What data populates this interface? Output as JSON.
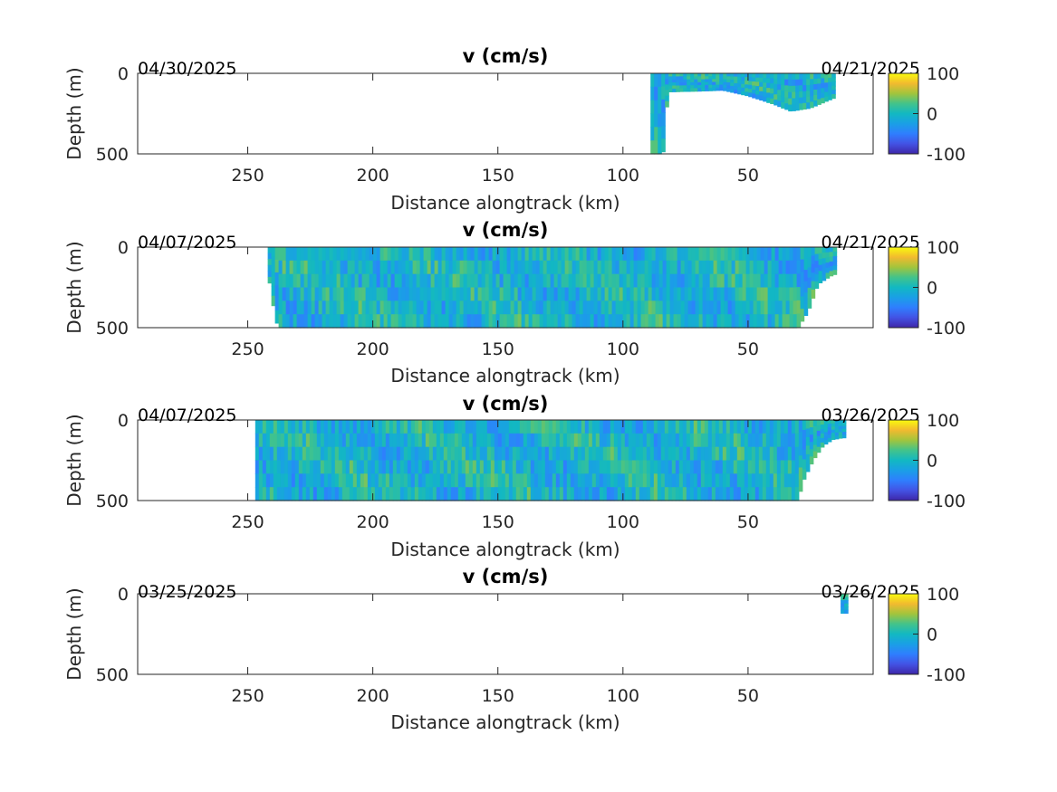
{
  "chart_data": [
    {
      "type": "heatmap",
      "title": "v (cm/s)",
      "xlabel": "Distance alongtrack (km)",
      "ylabel": "Depth (m)",
      "xlim": [
        294,
        0
      ],
      "ylim": [
        0,
        500
      ],
      "x_reversed": true,
      "xticks": [
        "250",
        "200",
        "150",
        "100",
        "50"
      ],
      "yticks": [
        "0",
        "500"
      ],
      "date_left": "04/30/2025",
      "date_right": "04/21/2025",
      "colorbar": {
        "limits": [
          -100,
          100
        ],
        "ticks": [
          "100",
          "0",
          "-100"
        ],
        "colormap": "parula"
      },
      "coverage": {
        "x_start_km": 89,
        "x_end_km": 16,
        "depth_profile": [
          [
            89,
            500
          ],
          [
            87.5,
            500
          ],
          [
            86,
            500
          ],
          [
            84,
            500
          ],
          [
            82,
            115
          ],
          [
            70,
            110
          ],
          [
            60,
            105
          ],
          [
            50,
            140
          ],
          [
            40,
            190
          ],
          [
            33,
            235
          ],
          [
            25,
            215
          ],
          [
            16,
            155
          ]
        ]
      }
    },
    {
      "type": "heatmap",
      "title": "v (cm/s)",
      "xlabel": "Distance alongtrack (km)",
      "ylabel": "Depth (m)",
      "xlim": [
        294,
        0
      ],
      "ylim": [
        0,
        500
      ],
      "x_reversed": true,
      "xticks": [
        "250",
        "200",
        "150",
        "100",
        "50"
      ],
      "yticks": [
        "0",
        "500"
      ],
      "date_left": "04/07/2025",
      "date_right": "04/21/2025",
      "colorbar": {
        "limits": [
          -100,
          100
        ],
        "ticks": [
          "100",
          "0",
          "-100"
        ],
        "colormap": "parula"
      },
      "coverage": {
        "x_start_km": 242,
        "x_end_km": 16,
        "depth_profile": [
          [
            242,
            150
          ],
          [
            240,
            350
          ],
          [
            238,
            500
          ],
          [
            235,
            500
          ],
          [
            30,
            500
          ],
          [
            26,
            400
          ],
          [
            22,
            230
          ],
          [
            16,
            170
          ]
        ]
      }
    },
    {
      "type": "heatmap",
      "title": "v (cm/s)",
      "xlabel": "Distance alongtrack (km)",
      "ylabel": "Depth (m)",
      "xlim": [
        294,
        0
      ],
      "ylim": [
        0,
        500
      ],
      "x_reversed": true,
      "xticks": [
        "250",
        "200",
        "150",
        "100",
        "50"
      ],
      "yticks": [
        "0",
        "500"
      ],
      "date_left": "04/07/2025",
      "date_right": "03/26/2025",
      "colorbar": {
        "limits": [
          -100,
          100
        ],
        "ticks": [
          "100",
          "0",
          "-100"
        ],
        "colormap": "parula"
      },
      "coverage": {
        "x_start_km": 247,
        "x_end_km": 12,
        "depth_profile": [
          [
            247,
            500
          ],
          [
            30,
            500
          ],
          [
            28,
            380
          ],
          [
            24,
            250
          ],
          [
            20,
            160
          ],
          [
            16,
            120
          ],
          [
            12,
            110
          ]
        ]
      }
    },
    {
      "type": "heatmap",
      "title": "v (cm/s)",
      "xlabel": "Distance alongtrack (km)",
      "ylabel": "Depth (m)",
      "xlim": [
        294,
        0
      ],
      "ylim": [
        0,
        500
      ],
      "x_reversed": true,
      "xticks": [
        "250",
        "200",
        "150",
        "100",
        "50"
      ],
      "yticks": [
        "0",
        "500"
      ],
      "date_left": "03/25/2025",
      "date_right": "03/26/2025",
      "colorbar": {
        "limits": [
          -100,
          100
        ],
        "ticks": [
          "100",
          "0",
          "-100"
        ],
        "colormap": "parula"
      },
      "coverage": {
        "x_start_km": 13,
        "x_end_km": 11.5,
        "depth_profile": [
          [
            13,
            120
          ],
          [
            11.5,
            120
          ]
        ]
      }
    }
  ]
}
